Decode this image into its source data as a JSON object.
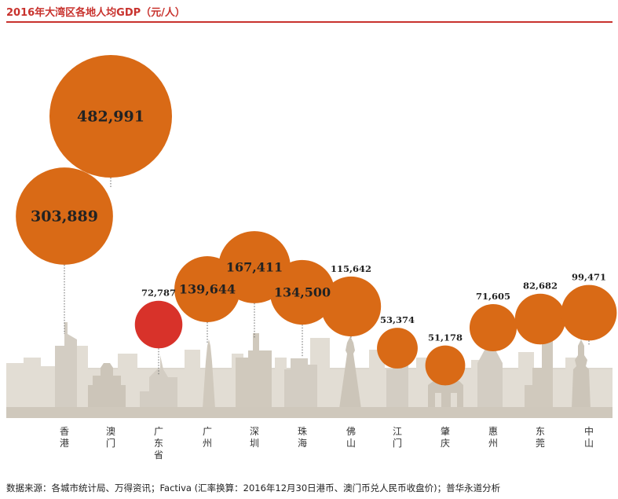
{
  "title": "2016年大湾区各地人均GDP（元/人）",
  "source": "数据来源：各城市统计局、万得资讯；Factiva (汇率换算：2016年12月30日港币、澳门币兑人民币收盘价)；普华永道分析",
  "colors": {
    "bubble": "#d96a16",
    "highlight": "#d8322a",
    "skyline": "#d6d0c6",
    "skyline_dark": "#c9c2b6",
    "title": "#c8322d"
  },
  "chart_data": {
    "type": "bubble",
    "title": "2016年大湾区各地人均GDP（元/人）",
    "categories": [
      "香港",
      "澳门",
      "广东省",
      "广州",
      "深圳",
      "珠海",
      "佛山",
      "江门",
      "肇庆",
      "惠州",
      "东莞",
      "中山"
    ],
    "values": [
      303889,
      482991,
      72787,
      139644,
      167411,
      134500,
      115642,
      53374,
      51178,
      71605,
      82682,
      99471
    ],
    "value_labels": [
      "303,889",
      "482,991",
      "72,787",
      "139,644",
      "167,411",
      "134,500",
      "115,642",
      "53,374",
      "51,178",
      "71,605",
      "82,682",
      "99,471"
    ],
    "highlight": "广东省"
  }
}
